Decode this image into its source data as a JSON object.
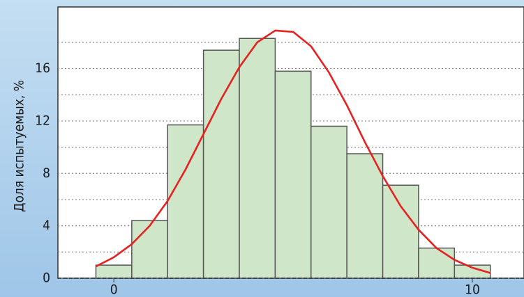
{
  "chart_data": {
    "type": "histogram",
    "ylabel": "Доля испытуемых, %",
    "bins": [
      -0.5,
      0.5,
      1.5,
      2.5,
      3.5,
      4.5,
      5.5,
      6.5,
      7.5,
      8.5,
      9.5,
      10.5
    ],
    "values": [
      1.0,
      4.4,
      11.7,
      17.4,
      18.3,
      15.8,
      11.6,
      9.5,
      7.1,
      2.3,
      1.0
    ],
    "color": "#cfe6c9",
    "curve": {
      "color": "#e6211f",
      "x": [
        -0.5,
        0,
        0.5,
        1,
        1.5,
        2,
        2.5,
        3,
        3.5,
        4,
        4.5,
        5,
        5.5,
        6,
        6.5,
        7,
        7.5,
        8,
        8.5,
        9,
        9.5,
        10,
        10.5
      ],
      "values": [
        0.9,
        1.6,
        2.6,
        4.0,
        5.9,
        8.3,
        11.0,
        13.7,
        16.1,
        18.0,
        18.9,
        18.8,
        17.7,
        15.7,
        13.2,
        10.4,
        7.8,
        5.5,
        3.7,
        2.3,
        1.4,
        0.8,
        0.4
      ]
    },
    "xlim": [
      -1.56,
      11.44
    ],
    "ylim": [
      0,
      20.7
    ],
    "xticks": [
      0,
      10
    ],
    "yticks": [
      0,
      4,
      8,
      12,
      16
    ],
    "grid": true
  }
}
